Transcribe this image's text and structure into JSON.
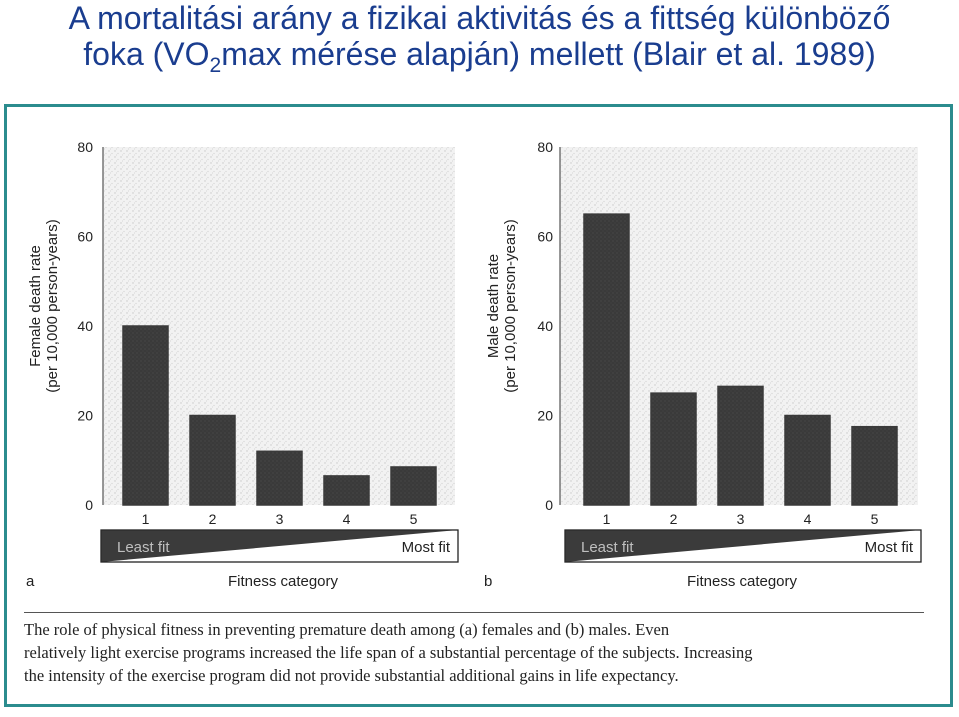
{
  "slide": {
    "title_line1": "A mortalitási arány a fizikai aktivitás és a fittség különböző",
    "title_line2_a": "foka (VO",
    "title_line2_sub": "2",
    "title_line2_b": "max mérése alapján) mellett (Blair et al. 1989)"
  },
  "colors": {
    "title": "#1a3d8f",
    "frame": "#2b8c8e",
    "bar": "#3a3a3a",
    "scale_bar": "#2a2a2a"
  },
  "chart_data": [
    {
      "panel": "a",
      "type": "bar",
      "categories": [
        "1",
        "2",
        "3",
        "4",
        "5"
      ],
      "values": [
        40,
        20,
        12,
        6.5,
        8.5
      ],
      "ylabel": "Female death rate",
      "ylabel_sub": "(per 10,000 person-years)",
      "xlabel": "Fitness category",
      "yticks": [
        0,
        20,
        40,
        60,
        80
      ],
      "ylim": [
        0,
        80
      ],
      "scale_left": "Least fit",
      "scale_right": "Most fit"
    },
    {
      "panel": "b",
      "type": "bar",
      "categories": [
        "1",
        "2",
        "3",
        "4",
        "5"
      ],
      "values": [
        65,
        25,
        26.5,
        20,
        17.5
      ],
      "ylabel": "Male death rate",
      "ylabel_sub": "(per 10,000 person-years)",
      "xlabel": "Fitness category",
      "yticks": [
        0,
        20,
        40,
        60,
        80
      ],
      "ylim": [
        0,
        80
      ],
      "scale_left": "Least fit",
      "scale_right": "Most fit"
    }
  ],
  "caption": {
    "line1": "The role of physical fitness in preventing premature death among (a) females and (b) males. Even",
    "line2": "relatively light exercise programs increased the life span of a substantial percentage of the subjects. Increasing",
    "line3": "the intensity of the exercise program did not provide substantial additional gains in life expectancy."
  }
}
